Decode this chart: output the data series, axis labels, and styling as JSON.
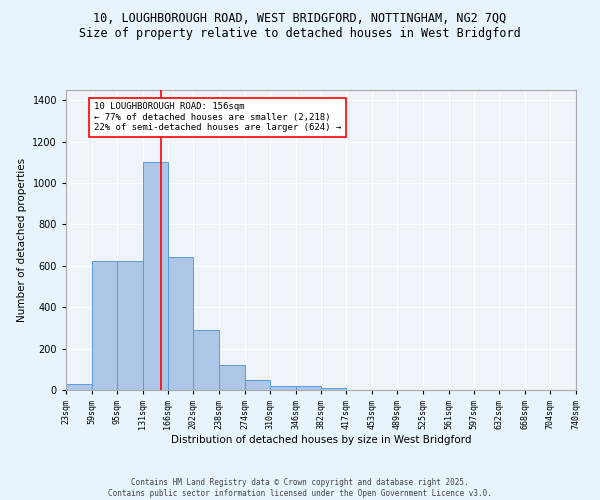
{
  "title_line1": "10, LOUGHBOROUGH ROAD, WEST BRIDGFORD, NOTTINGHAM, NG2 7QQ",
  "title_line2": "Size of property relative to detached houses in West Bridgford",
  "xlabel": "Distribution of detached houses by size in West Bridgford",
  "ylabel": "Number of detached properties",
  "bin_edges": [
    23,
    59,
    95,
    131,
    166,
    202,
    238,
    274,
    310,
    346,
    382,
    417,
    453,
    489,
    525,
    561,
    597,
    632,
    668,
    704,
    740
  ],
  "bar_heights": [
    30,
    625,
    625,
    1100,
    645,
    290,
    120,
    50,
    20,
    20,
    10,
    0,
    0,
    0,
    0,
    0,
    0,
    0,
    0,
    0
  ],
  "bar_color": "#aec6e8",
  "bar_edge_color": "#5b9bd5",
  "red_line_x": 156,
  "annotation_text": "10 LOUGHBOROUGH ROAD: 156sqm\n← 77% of detached houses are smaller (2,218)\n22% of semi-detached houses are larger (624) →",
  "ylim": [
    0,
    1450
  ],
  "yticks": [
    0,
    200,
    400,
    600,
    800,
    1000,
    1200,
    1400
  ],
  "tick_labels": [
    "23sqm",
    "59sqm",
    "95sqm",
    "131sqm",
    "166sqm",
    "202sqm",
    "238sqm",
    "274sqm",
    "310sqm",
    "346sqm",
    "382sqm",
    "417sqm",
    "453sqm",
    "489sqm",
    "525sqm",
    "561sqm",
    "597sqm",
    "632sqm",
    "668sqm",
    "704sqm",
    "740sqm"
  ],
  "bg_color": "#e8f4fb",
  "plot_bg": "#eef4fa",
  "footer_line1": "Contains HM Land Registry data © Crown copyright and database right 2025.",
  "footer_line2": "Contains public sector information licensed under the Open Government Licence v3.0.",
  "grid_color": "#ffffff",
  "title_fontsize": 8.5,
  "subtitle_fontsize": 8.5
}
